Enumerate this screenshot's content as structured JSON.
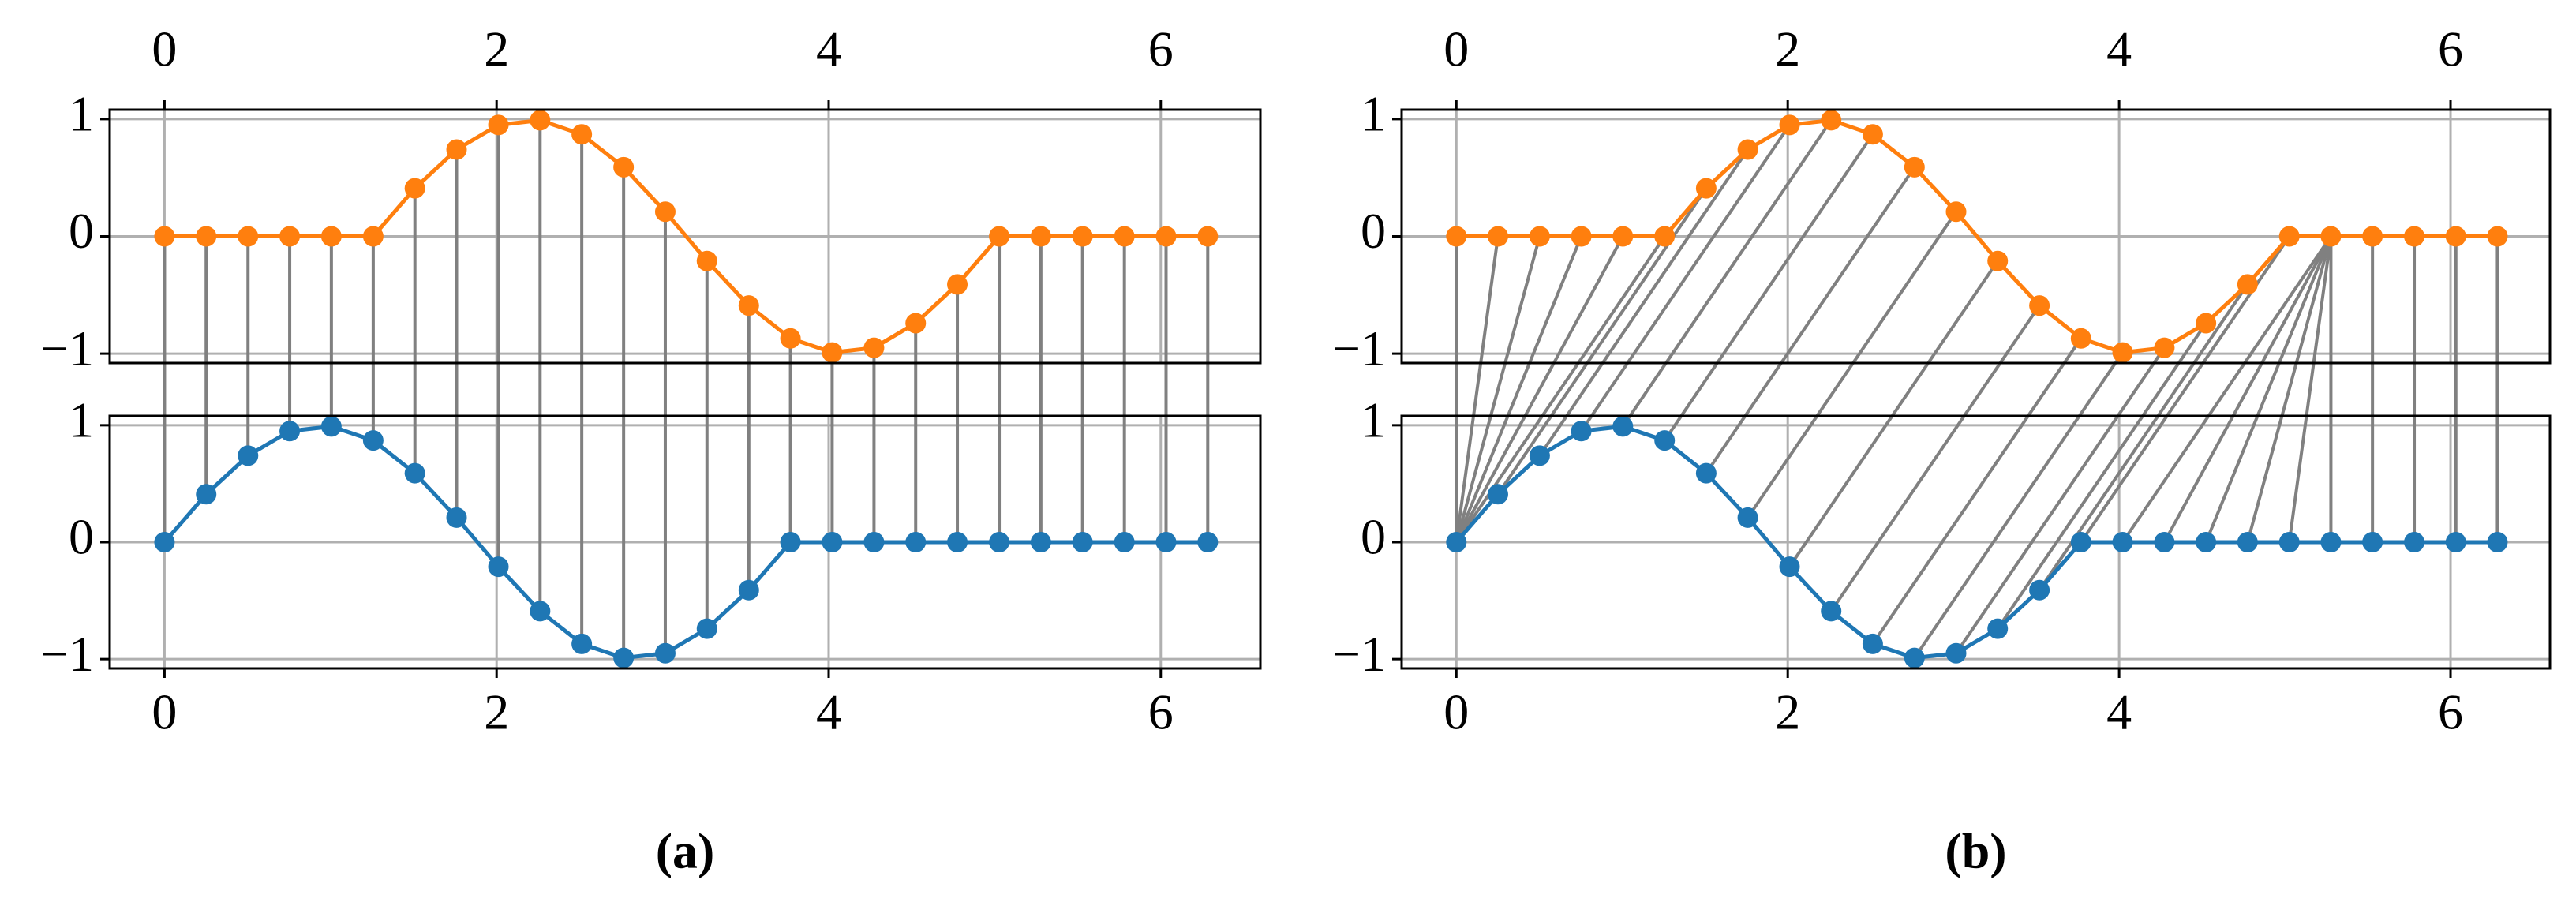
{
  "chart_data": [
    {
      "type": "line",
      "caption": "(a)",
      "x": [
        0,
        0.251,
        0.503,
        0.754,
        1.005,
        1.257,
        1.508,
        1.759,
        2.011,
        2.262,
        2.513,
        2.765,
        3.016,
        3.267,
        3.519,
        3.77,
        4.021,
        4.273,
        4.524,
        4.775,
        5.027,
        5.278,
        5.529,
        5.781,
        6.032,
        6.283
      ],
      "series": [
        {
          "color": "#ff7f0e",
          "values": [
            0,
            0,
            0,
            0,
            0,
            0,
            0.41,
            0.74,
            0.95,
            0.99,
            0.87,
            0.59,
            0.21,
            -0.21,
            -0.59,
            -0.87,
            -0.99,
            -0.95,
            -0.74,
            -0.41,
            0,
            0,
            0,
            0,
            0,
            0
          ]
        },
        {
          "color": "#1f77b4",
          "values": [
            0,
            0.41,
            0.74,
            0.95,
            0.99,
            0.87,
            0.59,
            0.21,
            -0.21,
            -0.59,
            -0.87,
            -0.99,
            -0.95,
            -0.74,
            -0.41,
            0,
            0,
            0,
            0,
            0,
            0,
            0,
            0,
            0,
            0,
            0
          ]
        }
      ],
      "alignment": [
        [
          0,
          0
        ],
        [
          1,
          1
        ],
        [
          2,
          2
        ],
        [
          3,
          3
        ],
        [
          4,
          4
        ],
        [
          5,
          5
        ],
        [
          6,
          6
        ],
        [
          7,
          7
        ],
        [
          8,
          8
        ],
        [
          9,
          9
        ],
        [
          10,
          10
        ],
        [
          11,
          11
        ],
        [
          12,
          12
        ],
        [
          13,
          13
        ],
        [
          14,
          14
        ],
        [
          15,
          15
        ],
        [
          16,
          16
        ],
        [
          17,
          17
        ],
        [
          18,
          18
        ],
        [
          19,
          19
        ],
        [
          20,
          20
        ],
        [
          21,
          21
        ],
        [
          22,
          22
        ],
        [
          23,
          23
        ],
        [
          24,
          24
        ],
        [
          25,
          25
        ]
      ],
      "alignment_color": "#808080",
      "xlim": [
        -0.33,
        6.6
      ],
      "xticks": [
        0,
        2,
        4,
        6
      ],
      "ylim": [
        -1.08,
        1.08
      ],
      "yticks": [
        {
          "value": -1,
          "label": "−1"
        },
        0,
        1
      ],
      "grid": true
    },
    {
      "type": "line",
      "caption": "(b)",
      "x": [
        0,
        0.251,
        0.503,
        0.754,
        1.005,
        1.257,
        1.508,
        1.759,
        2.011,
        2.262,
        2.513,
        2.765,
        3.016,
        3.267,
        3.519,
        3.77,
        4.021,
        4.273,
        4.524,
        4.775,
        5.027,
        5.278,
        5.529,
        5.781,
        6.032,
        6.283
      ],
      "series": [
        {
          "color": "#ff7f0e",
          "values": [
            0,
            0,
            0,
            0,
            0,
            0,
            0.41,
            0.74,
            0.95,
            0.99,
            0.87,
            0.59,
            0.21,
            -0.21,
            -0.59,
            -0.87,
            -0.99,
            -0.95,
            -0.74,
            -0.41,
            0,
            0,
            0,
            0,
            0,
            0
          ]
        },
        {
          "color": "#1f77b4",
          "values": [
            0,
            0.41,
            0.74,
            0.95,
            0.99,
            0.87,
            0.59,
            0.21,
            -0.21,
            -0.59,
            -0.87,
            -0.99,
            -0.95,
            -0.74,
            -0.41,
            0,
            0,
            0,
            0,
            0,
            0,
            0,
            0,
            0,
            0,
            0
          ]
        }
      ],
      "alignment": [
        [
          0,
          0
        ],
        [
          1,
          0
        ],
        [
          2,
          0
        ],
        [
          3,
          0
        ],
        [
          4,
          0
        ],
        [
          5,
          0
        ],
        [
          6,
          1
        ],
        [
          7,
          2
        ],
        [
          8,
          3
        ],
        [
          9,
          4
        ],
        [
          10,
          5
        ],
        [
          11,
          6
        ],
        [
          12,
          7
        ],
        [
          13,
          8
        ],
        [
          14,
          9
        ],
        [
          15,
          10
        ],
        [
          16,
          11
        ],
        [
          17,
          12
        ],
        [
          18,
          13
        ],
        [
          19,
          14
        ],
        [
          20,
          15
        ],
        [
          21,
          16
        ],
        [
          21,
          17
        ],
        [
          21,
          18
        ],
        [
          21,
          19
        ],
        [
          21,
          20
        ],
        [
          21,
          21
        ],
        [
          22,
          22
        ],
        [
          23,
          23
        ],
        [
          24,
          24
        ],
        [
          25,
          25
        ]
      ],
      "alignment_color": "#808080",
      "xlim": [
        -0.33,
        6.6
      ],
      "xticks": [
        0,
        2,
        4,
        6
      ],
      "ylim": [
        -1.08,
        1.08
      ],
      "yticks": [
        {
          "value": -1,
          "label": "−1"
        },
        0,
        1
      ],
      "grid": true
    }
  ]
}
